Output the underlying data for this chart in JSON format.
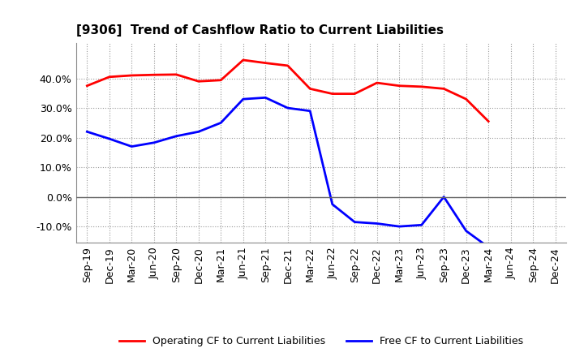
{
  "title": "[9306]  Trend of Cashflow Ratio to Current Liabilities",
  "x_labels": [
    "Sep-19",
    "Dec-19",
    "Mar-20",
    "Jun-20",
    "Sep-20",
    "Dec-20",
    "Mar-21",
    "Jun-21",
    "Sep-21",
    "Dec-21",
    "Mar-22",
    "Jun-22",
    "Sep-22",
    "Dec-22",
    "Mar-23",
    "Jun-23",
    "Sep-23",
    "Dec-23",
    "Mar-24",
    "Jun-24",
    "Sep-24",
    "Dec-24"
  ],
  "operating_cf": [
    0.375,
    0.405,
    0.41,
    0.412,
    0.413,
    0.39,
    0.394,
    0.462,
    0.452,
    0.443,
    0.365,
    0.348,
    0.348,
    0.385,
    0.375,
    0.372,
    0.365,
    0.33,
    0.255,
    null,
    null,
    null
  ],
  "free_cf": [
    0.22,
    0.196,
    0.17,
    0.183,
    0.205,
    0.22,
    0.25,
    0.33,
    0.335,
    0.3,
    0.29,
    -0.025,
    -0.085,
    -0.09,
    -0.1,
    -0.095,
    0.0,
    -0.115,
    -0.17,
    null,
    null,
    null
  ],
  "operating_color": "#FF0000",
  "free_color": "#0000FF",
  "ylim": [
    -0.155,
    0.52
  ],
  "yticks": [
    -0.1,
    0.0,
    0.1,
    0.2,
    0.3,
    0.4
  ],
  "background_color": "#FFFFFF",
  "grid_color": "#999999",
  "legend_operating": "Operating CF to Current Liabilities",
  "legend_free": "Free CF to Current Liabilities",
  "title_fontsize": 11,
  "tick_fontsize": 9,
  "legend_fontsize": 9
}
